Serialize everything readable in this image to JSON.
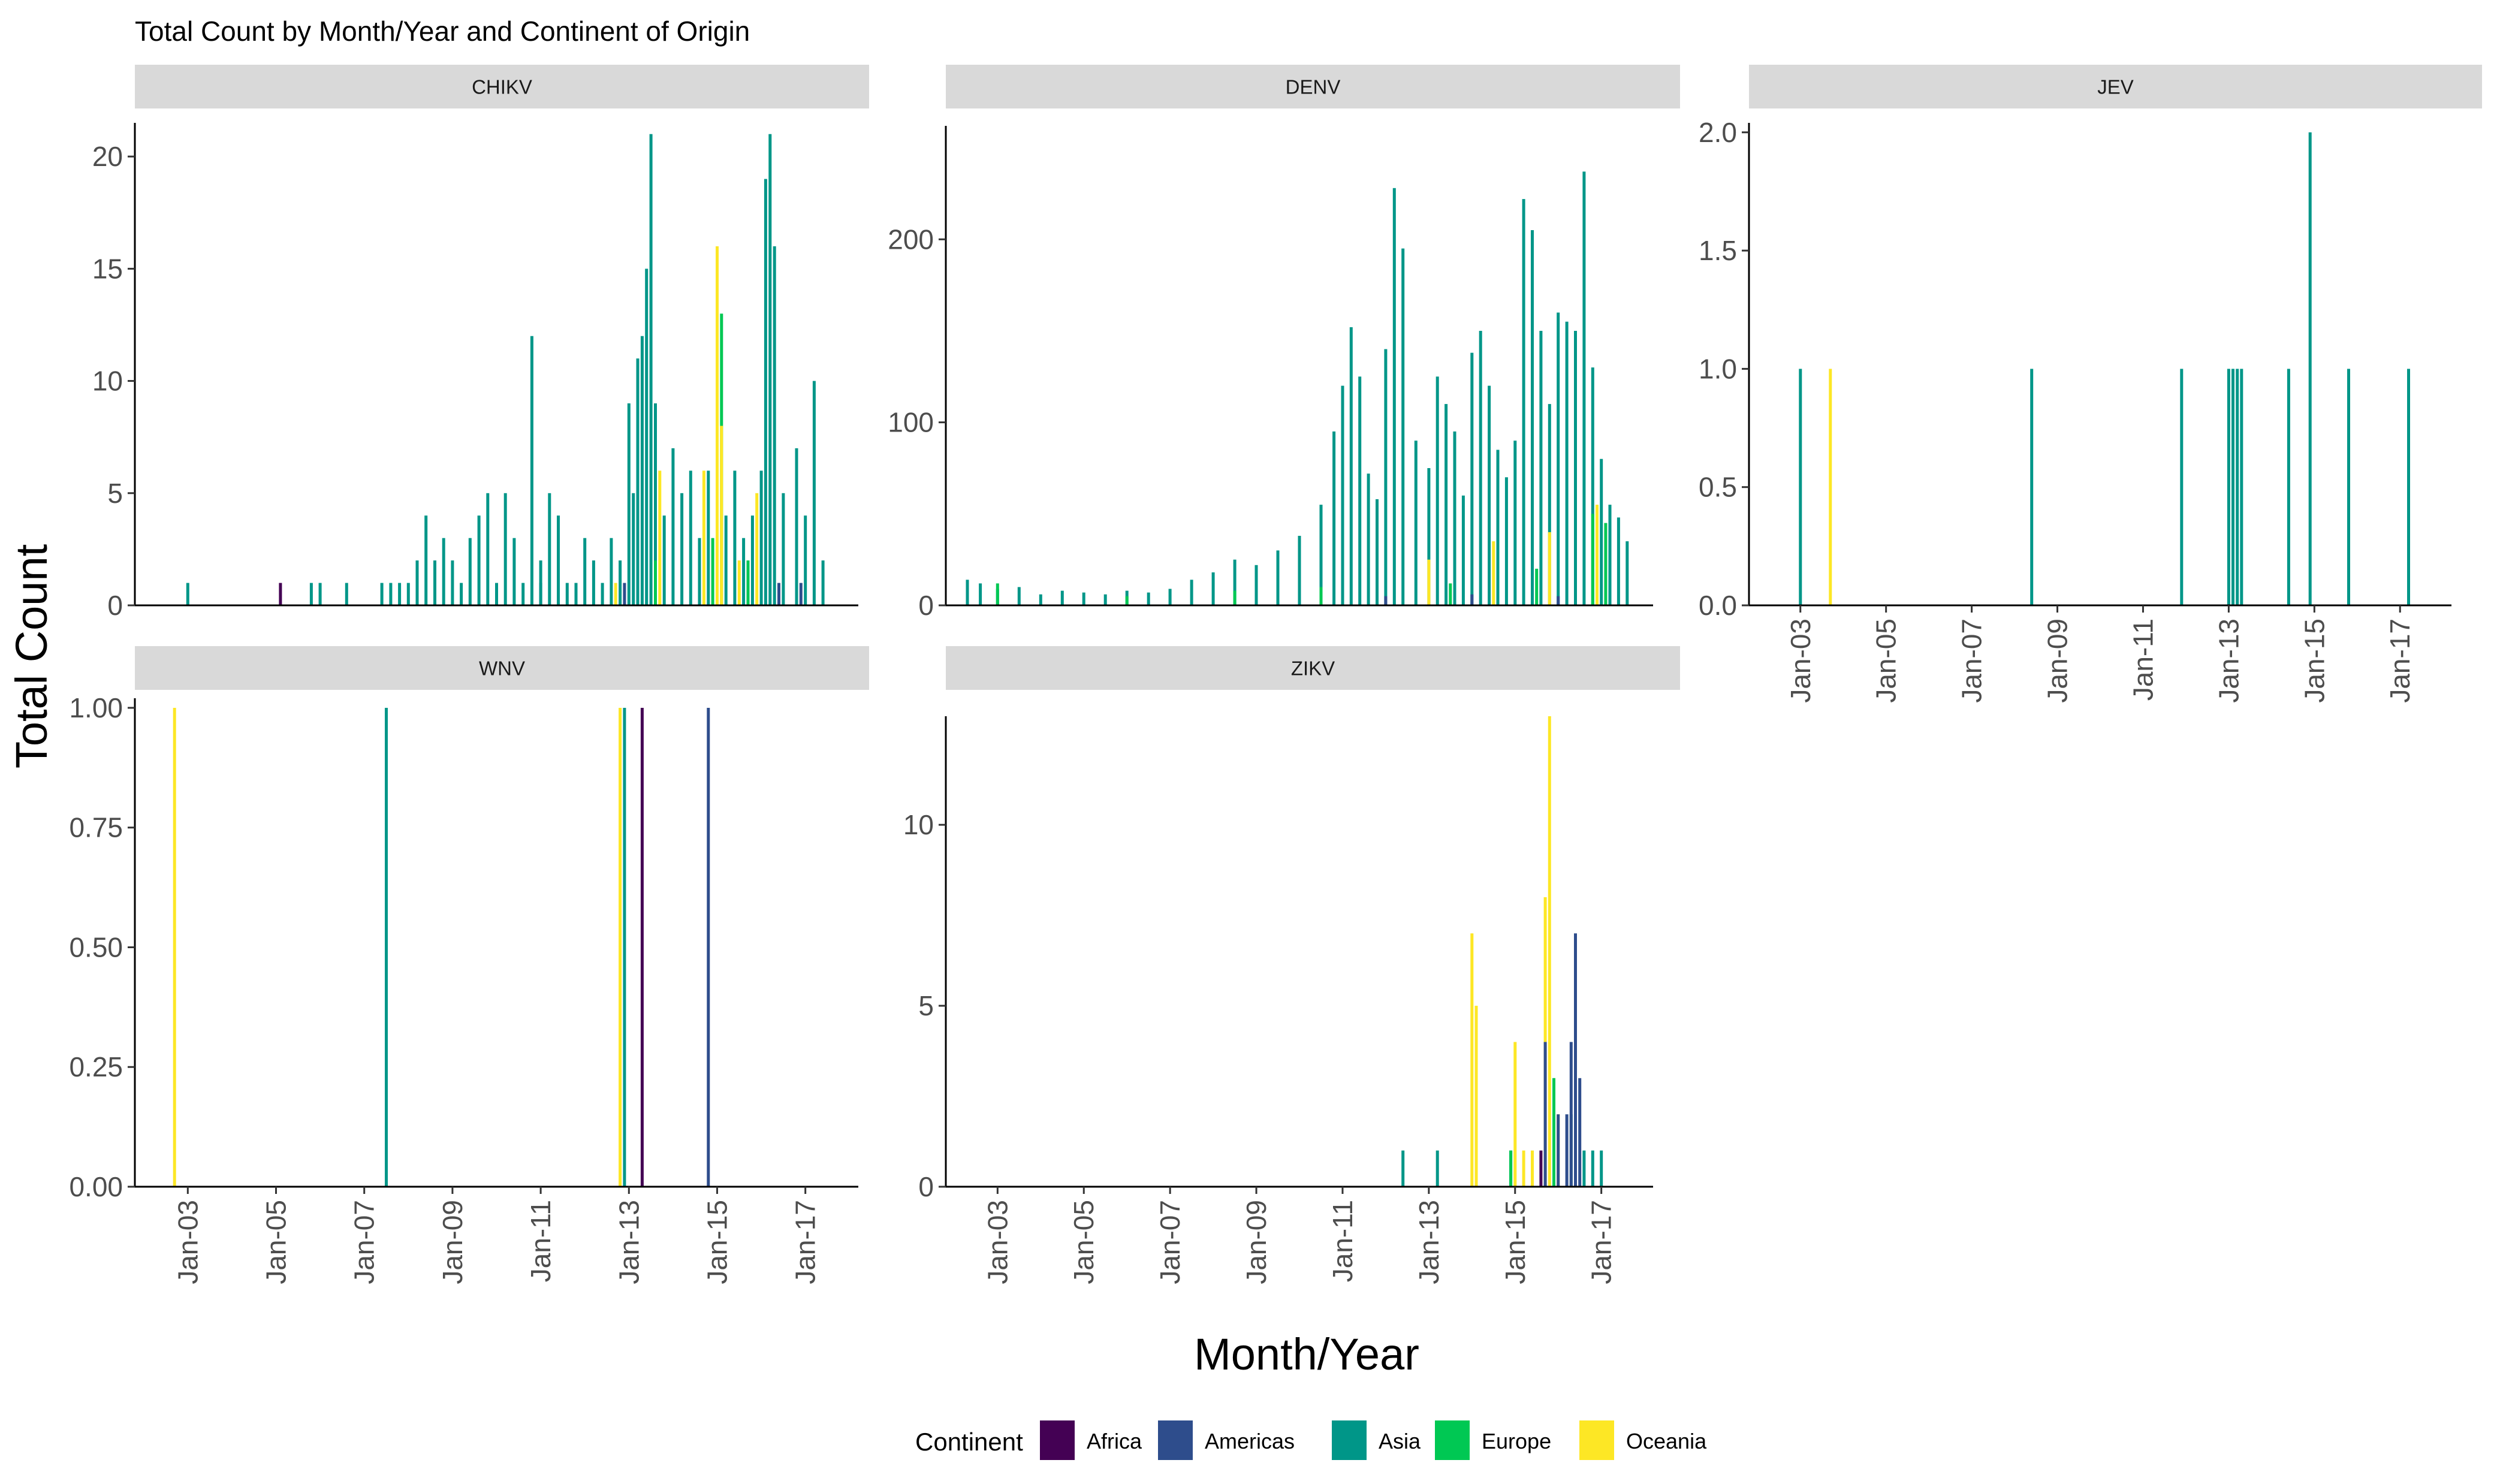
{
  "chart_data": {
    "type": "bar",
    "title": "Total Count by Month/Year and Continent of Origin",
    "xlabel": "Month/Year",
    "ylabel": "Total Count",
    "x_ticks": [
      "Jan-03",
      "Jan-05",
      "Jan-07",
      "Jan-09",
      "Jan-11",
      "Jan-13",
      "Jan-15",
      "Jan-17"
    ],
    "x_tick_years": [
      2003,
      2005,
      2007,
      2009,
      2011,
      2013,
      2015,
      2017
    ],
    "xlim": [
      2001.8,
      2018.2
    ],
    "legend": {
      "title": "Continent",
      "items": [
        {
          "name": "Africa",
          "color": "#440154"
        },
        {
          "name": "Americas",
          "color": "#2e4d8c"
        },
        {
          "name": "Asia",
          "color": "#009688"
        },
        {
          "name": "Europe",
          "color": "#00c853"
        },
        {
          "name": "Oceania",
          "color": "#fde725"
        }
      ]
    },
    "panels": [
      {
        "name": "CHIKV",
        "ylim": [
          0,
          21.5
        ],
        "yticks": [
          0,
          5,
          10,
          15,
          20
        ],
        "ytick_labels": [
          "0",
          "5",
          "10",
          "15",
          "20"
        ],
        "series": [
          {
            "name": "Africa",
            "points": [
              [
                2005.1,
                1
              ]
            ]
          },
          {
            "name": "Americas",
            "points": [
              [
                2011.0,
                1
              ],
              [
                2012.9,
                1
              ],
              [
                2016.4,
                1
              ],
              [
                2016.9,
                1
              ]
            ]
          },
          {
            "name": "Asia",
            "points": [
              [
                2003.0,
                1
              ],
              [
                2005.8,
                1
              ],
              [
                2006.0,
                1
              ],
              [
                2006.6,
                1
              ],
              [
                2007.4,
                1
              ],
              [
                2007.6,
                1
              ],
              [
                2007.8,
                1
              ],
              [
                2008.0,
                1
              ],
              [
                2008.2,
                2
              ],
              [
                2008.4,
                4
              ],
              [
                2008.6,
                2
              ],
              [
                2008.8,
                3
              ],
              [
                2009.0,
                2
              ],
              [
                2009.2,
                1
              ],
              [
                2009.4,
                3
              ],
              [
                2009.6,
                4
              ],
              [
                2009.8,
                5
              ],
              [
                2010.0,
                1
              ],
              [
                2010.2,
                5
              ],
              [
                2010.4,
                3
              ],
              [
                2010.6,
                1
              ],
              [
                2010.8,
                12
              ],
              [
                2011.0,
                2
              ],
              [
                2011.2,
                5
              ],
              [
                2011.4,
                4
              ],
              [
                2011.6,
                1
              ],
              [
                2011.8,
                1
              ],
              [
                2012.0,
                3
              ],
              [
                2012.2,
                2
              ],
              [
                2012.4,
                1
              ],
              [
                2012.6,
                3
              ],
              [
                2012.8,
                2
              ],
              [
                2013.0,
                9
              ],
              [
                2013.1,
                5
              ],
              [
                2013.2,
                11
              ],
              [
                2013.3,
                12
              ],
              [
                2013.4,
                15
              ],
              [
                2013.5,
                21
              ],
              [
                2013.6,
                9
              ],
              [
                2013.8,
                4
              ],
              [
                2014.0,
                7
              ],
              [
                2014.2,
                5
              ],
              [
                2014.4,
                6
              ],
              [
                2014.6,
                3
              ],
              [
                2014.8,
                6
              ],
              [
                2015.0,
                5
              ],
              [
                2015.2,
                4
              ],
              [
                2015.4,
                6
              ],
              [
                2015.6,
                3
              ],
              [
                2015.8,
                4
              ],
              [
                2016.0,
                6
              ],
              [
                2016.1,
                19
              ],
              [
                2016.2,
                21
              ],
              [
                2016.3,
                16
              ],
              [
                2016.5,
                5
              ],
              [
                2016.8,
                7
              ],
              [
                2017.0,
                4
              ],
              [
                2017.2,
                10
              ],
              [
                2017.4,
                2
              ]
            ]
          },
          {
            "name": "Europe",
            "points": [
              [
                2013.6,
                2
              ],
              [
                2014.9,
                3
              ],
              [
                2015.1,
                13
              ],
              [
                2015.7,
                2
              ]
            ]
          },
          {
            "name": "Oceania",
            "points": [
              [
                2012.7,
                1
              ],
              [
                2013.7,
                6
              ],
              [
                2014.7,
                6
              ],
              [
                2015.0,
                16
              ],
              [
                2015.1,
                8
              ],
              [
                2015.5,
                2
              ],
              [
                2015.9,
                5
              ]
            ]
          }
        ]
      },
      {
        "name": "DENV",
        "ylim": [
          0,
          262
        ],
        "yticks": [
          0,
          100,
          200
        ],
        "ytick_labels": [
          "0",
          "100",
          "200"
        ],
        "series": [
          {
            "name": "Asia",
            "points": [
              [
                2002.3,
                14
              ],
              [
                2002.6,
                12
              ],
              [
                2003.0,
                9
              ],
              [
                2003.5,
                10
              ],
              [
                2004.0,
                6
              ],
              [
                2004.5,
                8
              ],
              [
                2005.0,
                7
              ],
              [
                2005.5,
                6
              ],
              [
                2006.0,
                8
              ],
              [
                2006.5,
                7
              ],
              [
                2007.0,
                9
              ],
              [
                2007.5,
                14
              ],
              [
                2008.0,
                18
              ],
              [
                2008.5,
                25
              ],
              [
                2009.0,
                22
              ],
              [
                2009.5,
                30
              ],
              [
                2010.0,
                38
              ],
              [
                2010.5,
                55
              ],
              [
                2010.8,
                95
              ],
              [
                2011.0,
                120
              ],
              [
                2011.2,
                152
              ],
              [
                2011.4,
                125
              ],
              [
                2011.6,
                72
              ],
              [
                2011.8,
                58
              ],
              [
                2012.0,
                140
              ],
              [
                2012.2,
                228
              ],
              [
                2012.4,
                195
              ],
              [
                2012.7,
                90
              ],
              [
                2013.0,
                75
              ],
              [
                2013.2,
                125
              ],
              [
                2013.4,
                110
              ],
              [
                2013.6,
                95
              ],
              [
                2013.8,
                60
              ],
              [
                2014.0,
                138
              ],
              [
                2014.2,
                150
              ],
              [
                2014.4,
                120
              ],
              [
                2014.6,
                85
              ],
              [
                2014.8,
                70
              ],
              [
                2015.0,
                90
              ],
              [
                2015.2,
                222
              ],
              [
                2015.4,
                205
              ],
              [
                2015.6,
                150
              ],
              [
                2015.8,
                110
              ],
              [
                2016.0,
                160
              ],
              [
                2016.2,
                155
              ],
              [
                2016.4,
                150
              ],
              [
                2016.6,
                237
              ],
              [
                2016.8,
                130
              ],
              [
                2017.0,
                80
              ],
              [
                2017.2,
                55
              ],
              [
                2017.4,
                48
              ],
              [
                2017.6,
                35
              ]
            ]
          },
          {
            "name": "Europe",
            "points": [
              [
                2003.0,
                12
              ],
              [
                2006.0,
                5
              ],
              [
                2008.5,
                8
              ],
              [
                2010.5,
                10
              ],
              [
                2013.5,
                12
              ],
              [
                2015.5,
                20
              ],
              [
                2016.8,
                50
              ],
              [
                2017.1,
                45
              ]
            ]
          },
          {
            "name": "Oceania",
            "points": [
              [
                2013.0,
                25
              ],
              [
                2014.5,
                35
              ],
              [
                2015.8,
                40
              ],
              [
                2016.9,
                55
              ]
            ]
          },
          {
            "name": "Americas",
            "points": [
              [
                2012.0,
                5
              ],
              [
                2014.0,
                6
              ],
              [
                2016.0,
                5
              ]
            ]
          }
        ]
      },
      {
        "name": "JEV",
        "ylim": [
          0,
          2.04
        ],
        "yticks": [
          0,
          0.5,
          1.0,
          1.5,
          2.0
        ],
        "ytick_labels": [
          "0.0",
          "0.5",
          "1.0",
          "1.5",
          "2.0"
        ],
        "series": [
          {
            "name": "Asia",
            "points": [
              [
                2003.0,
                1
              ],
              [
                2008.4,
                1
              ],
              [
                2011.9,
                1
              ],
              [
                2013.0,
                1
              ],
              [
                2013.1,
                1
              ],
              [
                2013.2,
                1
              ],
              [
                2013.3,
                1
              ],
              [
                2014.4,
                1
              ],
              [
                2014.9,
                2
              ],
              [
                2015.8,
                1
              ],
              [
                2017.2,
                1
              ]
            ]
          },
          {
            "name": "Oceania",
            "points": [
              [
                2003.7,
                1
              ]
            ]
          }
        ]
      },
      {
        "name": "WNV",
        "ylim": [
          0,
          1.02
        ],
        "yticks": [
          0,
          0.25,
          0.5,
          0.75,
          1.0
        ],
        "ytick_labels": [
          "0.00",
          "0.25",
          "0.50",
          "0.75",
          "1.00"
        ],
        "series": [
          {
            "name": "Oceania",
            "points": [
              [
                2002.7,
                1
              ],
              [
                2012.8,
                1
              ]
            ]
          },
          {
            "name": "Asia",
            "points": [
              [
                2007.5,
                1
              ],
              [
                2012.9,
                1
              ]
            ]
          },
          {
            "name": "Africa",
            "points": [
              [
                2013.3,
                1
              ]
            ]
          },
          {
            "name": "Americas",
            "points": [
              [
                2014.8,
                1
              ]
            ]
          }
        ]
      },
      {
        "name": "ZIKV",
        "ylim": [
          0,
          13
        ],
        "yticks": [
          0,
          5,
          10
        ],
        "ytick_labels": [
          "0",
          "5",
          "10"
        ],
        "series": [
          {
            "name": "Asia",
            "points": [
              [
                2012.4,
                1
              ],
              [
                2013.2,
                1
              ],
              [
                2014.9,
                1
              ],
              [
                2016.3,
                2
              ],
              [
                2016.6,
                1
              ],
              [
                2016.8,
                1
              ],
              [
                2017.0,
                1
              ]
            ]
          },
          {
            "name": "Oceania",
            "points": [
              [
                2014.0,
                7
              ],
              [
                2014.1,
                5
              ],
              [
                2015.0,
                4
              ],
              [
                2015.2,
                1
              ],
              [
                2015.4,
                1
              ],
              [
                2015.7,
                8
              ],
              [
                2015.8,
                13
              ],
              [
                2015.9,
                3
              ],
              [
                2016.0,
                2
              ]
            ]
          },
          {
            "name": "Europe",
            "points": [
              [
                2014.9,
                1
              ],
              [
                2015.9,
                3
              ]
            ]
          },
          {
            "name": "Americas",
            "points": [
              [
                2015.7,
                4
              ],
              [
                2016.0,
                2
              ],
              [
                2016.2,
                2
              ],
              [
                2016.3,
                4
              ],
              [
                2016.4,
                7
              ],
              [
                2016.5,
                3
              ]
            ]
          },
          {
            "name": "Africa",
            "points": [
              [
                2015.6,
                1
              ]
            ]
          }
        ]
      }
    ]
  }
}
